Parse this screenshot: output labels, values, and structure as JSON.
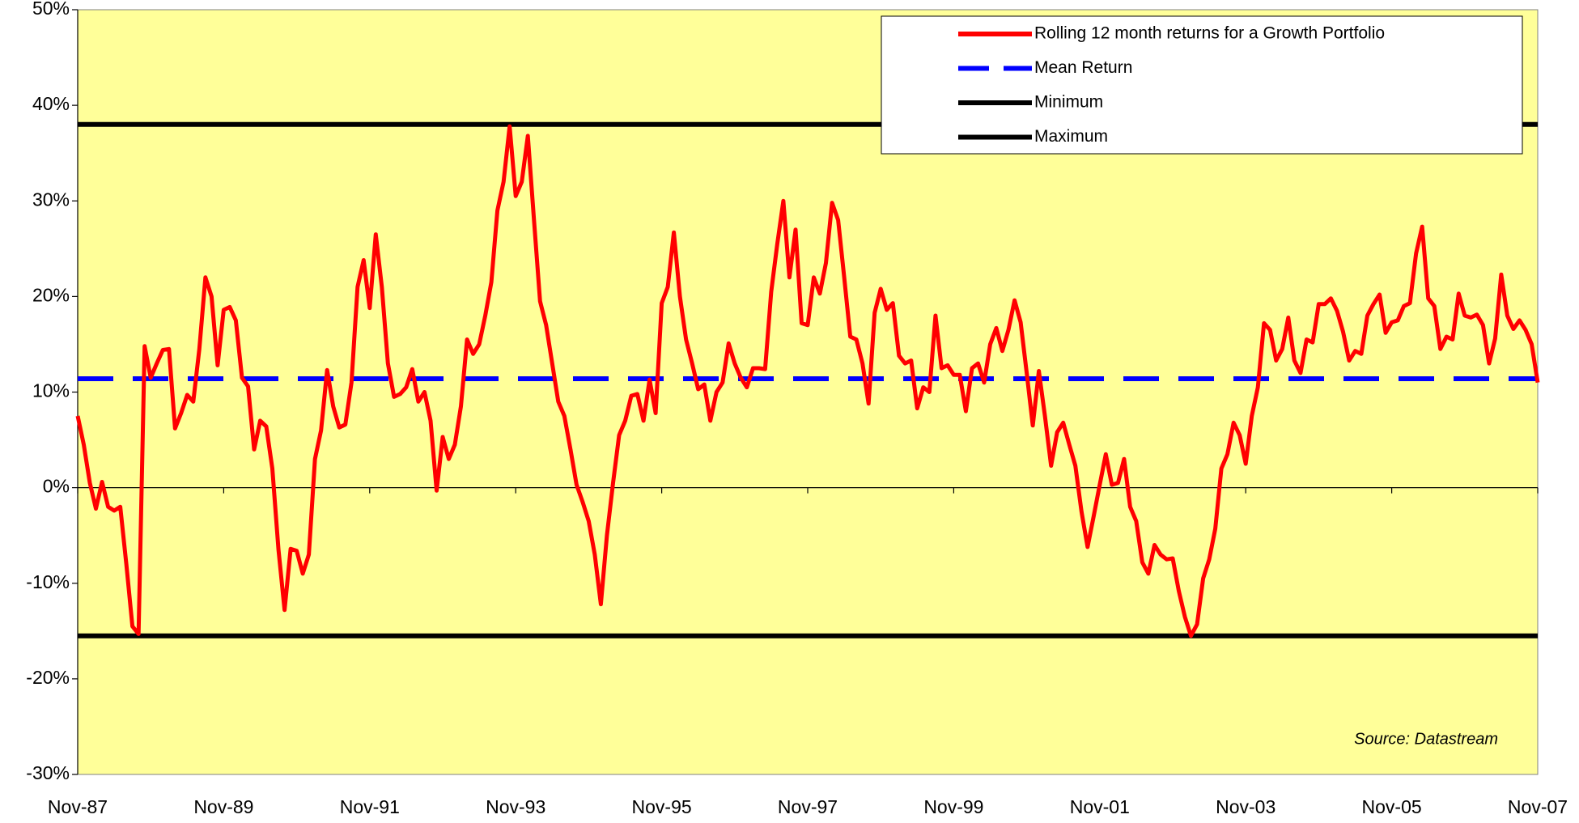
{
  "chart_data": {
    "type": "line",
    "categories": [
      "Nov-87",
      null,
      null,
      null,
      null,
      null,
      null,
      null,
      null,
      null,
      null,
      null,
      null,
      null,
      null,
      null,
      null,
      null,
      null,
      null,
      null,
      null,
      null,
      null,
      "Nov-89",
      null,
      null,
      null,
      null,
      null,
      null,
      null,
      null,
      null,
      null,
      null,
      null,
      null,
      null,
      null,
      null,
      null,
      null,
      null,
      null,
      null,
      null,
      null,
      "Nov-91",
      null,
      null,
      null,
      null,
      null,
      null,
      null,
      null,
      null,
      null,
      null,
      null,
      null,
      null,
      null,
      null,
      null,
      null,
      null,
      null,
      null,
      null,
      null,
      "Nov-93",
      null,
      null,
      null,
      null,
      null,
      null,
      null,
      null,
      null,
      null,
      null,
      null,
      null,
      null,
      null,
      null,
      null,
      null,
      null,
      null,
      null,
      null,
      null,
      "Nov-95",
      null,
      null,
      null,
      null,
      null,
      null,
      null,
      null,
      null,
      null,
      null,
      null,
      null,
      null,
      null,
      null,
      null,
      null,
      null,
      null,
      null,
      null,
      null,
      "Nov-97",
      null,
      null,
      null,
      null,
      null,
      null,
      null,
      null,
      null,
      null,
      null,
      null,
      null,
      null,
      null,
      null,
      null,
      null,
      null,
      null,
      null,
      null,
      null,
      "Nov-99",
      null,
      null,
      null,
      null,
      null,
      null,
      null,
      null,
      null,
      null,
      null,
      null,
      null,
      null,
      null,
      null,
      null,
      null,
      null,
      null,
      null,
      null,
      null,
      "Nov-01",
      null,
      null,
      null,
      null,
      null,
      null,
      null,
      null,
      null,
      null,
      null,
      null,
      null,
      null,
      null,
      null,
      null,
      null,
      null,
      null,
      null,
      null,
      null,
      "Nov-03",
      null,
      null,
      null,
      null,
      null,
      null,
      null,
      null,
      null,
      null,
      null,
      null,
      null,
      null,
      null,
      null,
      null,
      null,
      null,
      null,
      null,
      null,
      null,
      "Nov-05",
      null,
      null,
      null,
      null,
      null,
      null,
      null,
      null,
      null,
      null,
      null,
      null,
      null,
      null,
      null,
      null,
      null,
      null,
      null,
      null,
      null,
      null,
      null,
      "Nov-07"
    ],
    "series": [
      {
        "name": "Rolling 12 month returns for a Growth Portfolio",
        "color": "#ff0000",
        "values": [
          7.5,
          4.5,
          0.5,
          -2.2,
          0.6,
          -2,
          -2.4,
          -2,
          -8,
          -14.5,
          -15.3,
          14.8,
          11.5,
          13,
          14.4,
          14.5,
          6.2,
          7.8,
          9.7,
          9,
          14.5,
          22,
          20,
          12.8,
          18.6,
          18.9,
          17.5,
          11.5,
          10.6,
          4,
          7,
          6.4,
          2,
          -6.5,
          -12.8,
          -6.4,
          -6.6,
          -9,
          -7,
          3,
          6,
          12.3,
          8.5,
          6.3,
          6.6,
          11,
          21,
          23.8,
          18.8,
          26.5,
          21,
          13,
          9.5,
          9.8,
          10.5,
          12.4,
          9,
          10,
          7,
          -0.3,
          5.3,
          3,
          4.5,
          8.5,
          15.5,
          14,
          15,
          18,
          21.5,
          29,
          32,
          37.8,
          30.5,
          32,
          36.8,
          28,
          19.5,
          17,
          13,
          9,
          7.5,
          4,
          0.3,
          -1.5,
          -3.5,
          -7,
          -12.2,
          -5,
          0.5,
          5.5,
          7,
          9.6,
          9.8,
          7,
          11.3,
          7.8,
          19.3,
          21,
          26.7,
          20,
          15.5,
          13,
          10.3,
          10.8,
          7,
          10,
          11,
          15.1,
          13,
          11.5,
          10.5,
          12.5,
          12.5,
          12.4,
          20.5,
          25.5,
          30,
          22,
          27,
          17.2,
          17,
          22,
          20.3,
          23.5,
          29.8,
          28,
          22,
          15.8,
          15.5,
          13,
          8.8,
          18.3,
          20.8,
          18.6,
          19.3,
          13.8,
          13,
          13.3,
          8.3,
          10.5,
          10,
          18,
          12.5,
          12.8,
          11.8,
          11.8,
          8,
          12.5,
          13,
          11,
          15,
          16.7,
          14.3,
          16.5,
          19.6,
          17.3,
          12,
          6.5,
          12.2,
          7.5,
          2.3,
          5.8,
          6.8,
          4.5,
          2.3,
          -2.5,
          -6.2,
          -3,
          0.3,
          3.5,
          0.3,
          0.5,
          3,
          -2,
          -3.5,
          -7.8,
          -9,
          -6,
          -7,
          -7.5,
          -7.4,
          -10.8,
          -13.5,
          -15.5,
          -14.3,
          -9.5,
          -7.5,
          -4.3,
          2,
          3.5,
          6.8,
          5.5,
          2.5,
          7.5,
          10.5,
          17.2,
          16.5,
          13.3,
          14.5,
          17.8,
          13.3,
          12,
          15.5,
          15.2,
          19.2,
          19.2,
          19.8,
          18.5,
          16.3,
          13.3,
          14.3,
          14,
          18,
          19.2,
          20.2,
          16.2,
          17.3,
          17.5,
          19,
          19.3,
          24.5,
          27.3,
          19.8,
          19,
          14.5,
          15.8,
          15.5,
          20.3,
          18,
          17.8,
          18.1,
          17,
          13,
          15.6,
          22.3,
          18,
          16.6,
          17.5,
          16.5,
          15,
          11
        ]
      }
    ],
    "reference_lines": [
      {
        "name": "Mean Return",
        "value": 11.4,
        "color": "#0000ff",
        "dashed": true
      },
      {
        "name": "Minimum",
        "value": -15.5,
        "color": "#000000",
        "dashed": false
      },
      {
        "name": "Maximum",
        "value": 38,
        "color": "#000000",
        "dashed": false
      }
    ],
    "ylim": [
      -30,
      50
    ],
    "yticks": [
      {
        "value": -30,
        "label": "-30%"
      },
      {
        "value": -20,
        "label": "-20%"
      },
      {
        "value": -10,
        "label": "-10%"
      },
      {
        "value": 0,
        "label": "0%"
      },
      {
        "value": 10,
        "label": "10%"
      },
      {
        "value": 20,
        "label": "20%"
      },
      {
        "value": 30,
        "label": "30%"
      },
      {
        "value": 40,
        "label": "40%"
      },
      {
        "value": 50,
        "label": "50%"
      }
    ],
    "annotation": "Source: Datastream",
    "background": "#ffff99",
    "grid": false,
    "legend": "top-right"
  }
}
